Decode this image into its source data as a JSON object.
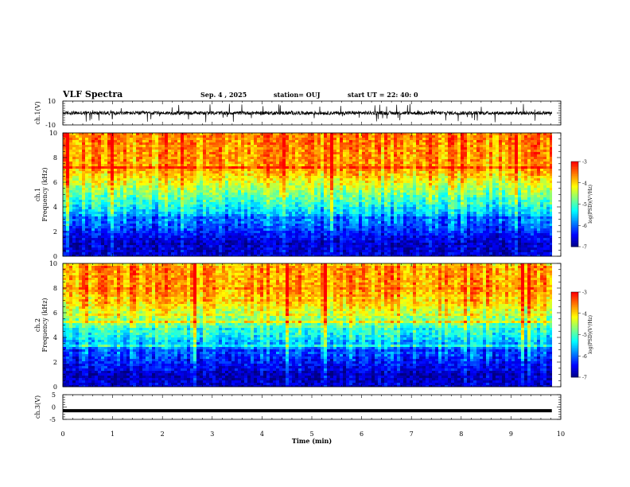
{
  "header": {
    "title": "VLF Spectra",
    "date": "Sep. 4 , 2025",
    "station": "station= OUJ",
    "start": "start UT = 22: 40: 0"
  },
  "colors": {
    "waveform": "#000000",
    "ch3_bar": "#000000",
    "spectrogram_bg": "#ff2a00",
    "colormap": [
      "#000080",
      "#0000ff",
      "#0080ff",
      "#00ffff",
      "#80ff80",
      "#ffff00",
      "#ff8000",
      "#ff0000",
      "#ffffff"
    ]
  },
  "chart_data": [
    {
      "type": "line",
      "name": "waveform",
      "ylabel": "ch.1(V)",
      "yticks": [
        "10",
        "-10"
      ],
      "ylim": [
        -10,
        10
      ],
      "xlim": [
        0,
        10
      ],
      "x_extent": [
        0,
        9.82
      ],
      "baseline": 0,
      "amplitude_typical": 2.5,
      "grid": false
    },
    {
      "type": "heatmap",
      "name": "spectrogram",
      "ylabel": "ch.1\nFrequency (kHz)",
      "yticks": [
        "0",
        "2",
        "4",
        "6",
        "8",
        "10"
      ],
      "ylim": [
        0,
        10
      ],
      "xlim": [
        0,
        10
      ],
      "x_extent": [
        0,
        9.82
      ],
      "colorbar": {
        "label": "log(PSD)(V²/Hz)",
        "ticks": [
          "-3",
          "-4",
          "-5",
          "-6",
          "-7"
        ],
        "range": [
          -7,
          -3
        ]
      },
      "profile_khz": [
        [
          0,
          -6.6
        ],
        [
          1,
          -6.7
        ],
        [
          2,
          -6.3
        ],
        [
          3,
          -5.9
        ],
        [
          4,
          -5.3
        ],
        [
          5,
          -4.8
        ],
        [
          6,
          -4.3
        ],
        [
          7,
          -3.8
        ],
        [
          8,
          -3.7
        ],
        [
          10,
          -3.6
        ]
      ],
      "grid": false
    },
    {
      "type": "heatmap",
      "name": "spectrogram",
      "ylabel": "ch.2\nFrequency (kHz)",
      "yticks": [
        "0",
        "2",
        "4",
        "6",
        "8",
        "10"
      ],
      "ylim": [
        0,
        10
      ],
      "xlim": [
        0,
        10
      ],
      "x_extent": [
        0,
        9.82
      ],
      "colorbar": {
        "label": "log(PSD)(V²/Hz)",
        "ticks": [
          "-3",
          "-4",
          "-5",
          "-6",
          "-7"
        ],
        "range": [
          -7,
          -3
        ]
      },
      "profile_khz": [
        [
          0,
          -6.6
        ],
        [
          1,
          -6.7
        ],
        [
          2,
          -6.3
        ],
        [
          3,
          -5.9
        ],
        [
          4,
          -5.3
        ],
        [
          5,
          -4.8
        ],
        [
          6,
          -4.3
        ],
        [
          7,
          -3.8
        ],
        [
          8,
          -3.7
        ],
        [
          10,
          -3.6
        ]
      ],
      "grid": false
    },
    {
      "type": "line",
      "name": "waveform",
      "ylabel": "ch.3(V)",
      "yticks": [
        "5",
        "0",
        "-5"
      ],
      "ylim": [
        -5,
        5
      ],
      "xlim": [
        0,
        10
      ],
      "x_extent": [
        0,
        9.82
      ],
      "value": -1.5,
      "xticks": [
        "0",
        "1",
        "2",
        "3",
        "4",
        "5",
        "6",
        "7",
        "8",
        "9",
        "10"
      ],
      "xlabel": "Time (min)",
      "grid": false
    }
  ]
}
